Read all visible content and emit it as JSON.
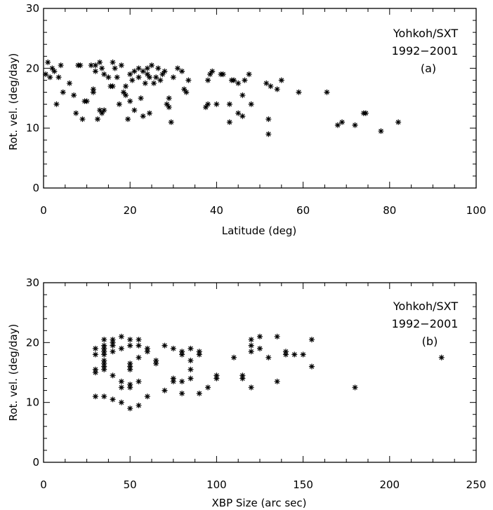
{
  "chart_data": [
    {
      "type": "scatter",
      "title": "",
      "xlabel": "Latitude (deg)",
      "ylabel": "Rot. vel. (deg/day)",
      "xlim": [
        0,
        100
      ],
      "ylim": [
        0,
        30
      ],
      "xticks": [
        0,
        20,
        40,
        60,
        80,
        100
      ],
      "yticks": [
        0,
        10,
        20,
        30
      ],
      "annotation": [
        "Yohkoh/SXT",
        "1992−2001",
        "(a)"
      ],
      "grid": false,
      "marker": "asterisk",
      "points": [
        [
          0.5,
          19.0
        ],
        [
          1,
          21.0
        ],
        [
          1.5,
          18.5
        ],
        [
          2,
          20.0
        ],
        [
          2.5,
          19.5
        ],
        [
          3,
          14.0
        ],
        [
          3.5,
          18.5
        ],
        [
          4,
          20.5
        ],
        [
          4.5,
          16.0
        ],
        [
          6,
          17.5
        ],
        [
          7,
          15.5
        ],
        [
          7.5,
          12.5
        ],
        [
          8,
          20.5
        ],
        [
          8.5,
          20.5
        ],
        [
          9,
          11.5
        ],
        [
          9.5,
          14.5
        ],
        [
          10,
          14.5
        ],
        [
          11,
          20.5
        ],
        [
          11.5,
          16.5
        ],
        [
          11.5,
          16.0
        ],
        [
          12,
          20.5
        ],
        [
          12,
          19.5
        ],
        [
          12.5,
          11.5
        ],
        [
          13,
          13.0
        ],
        [
          13,
          21.0
        ],
        [
          13.5,
          12.5
        ],
        [
          13.5,
          20.0
        ],
        [
          14,
          13.0
        ],
        [
          14,
          19.0
        ],
        [
          15,
          18.5
        ],
        [
          15.5,
          17.0
        ],
        [
          16,
          17.0
        ],
        [
          16,
          21.0
        ],
        [
          16.5,
          20.0
        ],
        [
          17,
          18.5
        ],
        [
          17.5,
          14.0
        ],
        [
          18,
          20.5
        ],
        [
          18.5,
          16.0
        ],
        [
          19,
          15.5
        ],
        [
          19,
          17.0
        ],
        [
          19.5,
          11.5
        ],
        [
          20,
          19.0
        ],
        [
          20,
          14.5
        ],
        [
          20.5,
          18.0
        ],
        [
          21,
          19.5
        ],
        [
          21,
          13.0
        ],
        [
          22,
          18.5
        ],
        [
          22,
          20.0
        ],
        [
          22.5,
          15.0
        ],
        [
          23,
          19.5
        ],
        [
          23,
          12.0
        ],
        [
          23.5,
          17.5
        ],
        [
          24,
          19.0
        ],
        [
          24,
          20.0
        ],
        [
          24.5,
          12.5
        ],
        [
          24.5,
          18.5
        ],
        [
          25,
          20.5
        ],
        [
          25.5,
          17.5
        ],
        [
          26,
          18.5
        ],
        [
          26.5,
          20.0
        ],
        [
          27,
          18.0
        ],
        [
          27.5,
          19.0
        ],
        [
          28,
          19.5
        ],
        [
          28.5,
          14.0
        ],
        [
          29,
          15.0
        ],
        [
          29,
          13.5
        ],
        [
          29.5,
          11.0
        ],
        [
          30,
          18.5
        ],
        [
          31,
          20.0
        ],
        [
          32,
          19.5
        ],
        [
          32.5,
          16.5
        ],
        [
          33,
          16.0
        ],
        [
          33.5,
          18.0
        ],
        [
          37.5,
          13.5
        ],
        [
          38,
          14.0
        ],
        [
          38,
          18.0
        ],
        [
          38.5,
          19.0
        ],
        [
          39,
          19.5
        ],
        [
          40,
          14.0
        ],
        [
          41,
          19.0
        ],
        [
          41.5,
          19.0
        ],
        [
          43,
          11.0
        ],
        [
          43,
          14.0
        ],
        [
          43.5,
          18.0
        ],
        [
          44,
          18.0
        ],
        [
          45,
          17.5
        ],
        [
          45,
          12.5
        ],
        [
          46,
          12.0
        ],
        [
          46,
          15.5
        ],
        [
          46.5,
          18.0
        ],
        [
          47.5,
          19.0
        ],
        [
          48,
          14.0
        ],
        [
          51.5,
          17.5
        ],
        [
          52,
          9.0
        ],
        [
          52,
          11.5
        ],
        [
          52.5,
          17.0
        ],
        [
          54,
          16.5
        ],
        [
          55,
          18.0
        ],
        [
          59,
          16.0
        ],
        [
          65.5,
          16.0
        ],
        [
          68,
          10.5
        ],
        [
          69,
          11.0
        ],
        [
          72,
          10.5
        ],
        [
          74,
          12.5
        ],
        [
          74.5,
          12.5
        ],
        [
          78,
          9.5
        ],
        [
          82,
          11.0
        ]
      ]
    },
    {
      "type": "scatter",
      "title": "",
      "xlabel": "XBP Size (arc sec)",
      "ylabel": "Rot. vel. (deg/day)",
      "xlim": [
        0,
        250
      ],
      "ylim": [
        0,
        30
      ],
      "xticks": [
        0,
        50,
        100,
        150,
        200,
        250
      ],
      "yticks": [
        0,
        10,
        20,
        30
      ],
      "annotation": [
        "Yohkoh/SXT",
        "1992−2001",
        "(b)"
      ],
      "grid": false,
      "marker": "asterisk",
      "points": [
        [
          30,
          19.0
        ],
        [
          30,
          18.0
        ],
        [
          30,
          15.5
        ],
        [
          30,
          15.0
        ],
        [
          30,
          11.0
        ],
        [
          35,
          20.5
        ],
        [
          35,
          19.5
        ],
        [
          35,
          19.0
        ],
        [
          35,
          18.5
        ],
        [
          35,
          18.0
        ],
        [
          35,
          17.0
        ],
        [
          35,
          16.5
        ],
        [
          35,
          16.0
        ],
        [
          35,
          15.5
        ],
        [
          35,
          11.0
        ],
        [
          40,
          20.5
        ],
        [
          40,
          20.0
        ],
        [
          40,
          19.5
        ],
        [
          40,
          18.5
        ],
        [
          40,
          14.5
        ],
        [
          40,
          10.5
        ],
        [
          45,
          21.0
        ],
        [
          45,
          19.0
        ],
        [
          45,
          13.5
        ],
        [
          45,
          12.5
        ],
        [
          45,
          10.0
        ],
        [
          50,
          20.5
        ],
        [
          50,
          19.5
        ],
        [
          50,
          16.5
        ],
        [
          50,
          16.0
        ],
        [
          50,
          15.5
        ],
        [
          50,
          13.0
        ],
        [
          50,
          12.5
        ],
        [
          50,
          9.0
        ],
        [
          55,
          20.5
        ],
        [
          55,
          19.5
        ],
        [
          55,
          17.5
        ],
        [
          55,
          13.5
        ],
        [
          55,
          9.5
        ],
        [
          60,
          19.0
        ],
        [
          60,
          18.5
        ],
        [
          60,
          11.0
        ],
        [
          65,
          17.0
        ],
        [
          65,
          16.5
        ],
        [
          70,
          19.5
        ],
        [
          70,
          12.0
        ],
        [
          75,
          19.0
        ],
        [
          75,
          14.0
        ],
        [
          75,
          13.5
        ],
        [
          80,
          18.5
        ],
        [
          80,
          18.0
        ],
        [
          80,
          13.5
        ],
        [
          80,
          11.5
        ],
        [
          85,
          19.0
        ],
        [
          85,
          17.0
        ],
        [
          85,
          15.5
        ],
        [
          85,
          14.0
        ],
        [
          90,
          18.5
        ],
        [
          90,
          18.0
        ],
        [
          90,
          11.5
        ],
        [
          95,
          12.5
        ],
        [
          100,
          14.5
        ],
        [
          100,
          14.0
        ],
        [
          110,
          17.5
        ],
        [
          115,
          14.5
        ],
        [
          115,
          14.0
        ],
        [
          120,
          20.5
        ],
        [
          120,
          19.5
        ],
        [
          120,
          18.5
        ],
        [
          120,
          12.5
        ],
        [
          125,
          21.0
        ],
        [
          125,
          19.0
        ],
        [
          130,
          17.5
        ],
        [
          135,
          21.0
        ],
        [
          135,
          13.5
        ],
        [
          140,
          18.5
        ],
        [
          140,
          18.0
        ],
        [
          145,
          18.0
        ],
        [
          150,
          18.0
        ],
        [
          155,
          20.5
        ],
        [
          155,
          16.0
        ],
        [
          180,
          12.5
        ],
        [
          230,
          17.5
        ]
      ]
    }
  ]
}
